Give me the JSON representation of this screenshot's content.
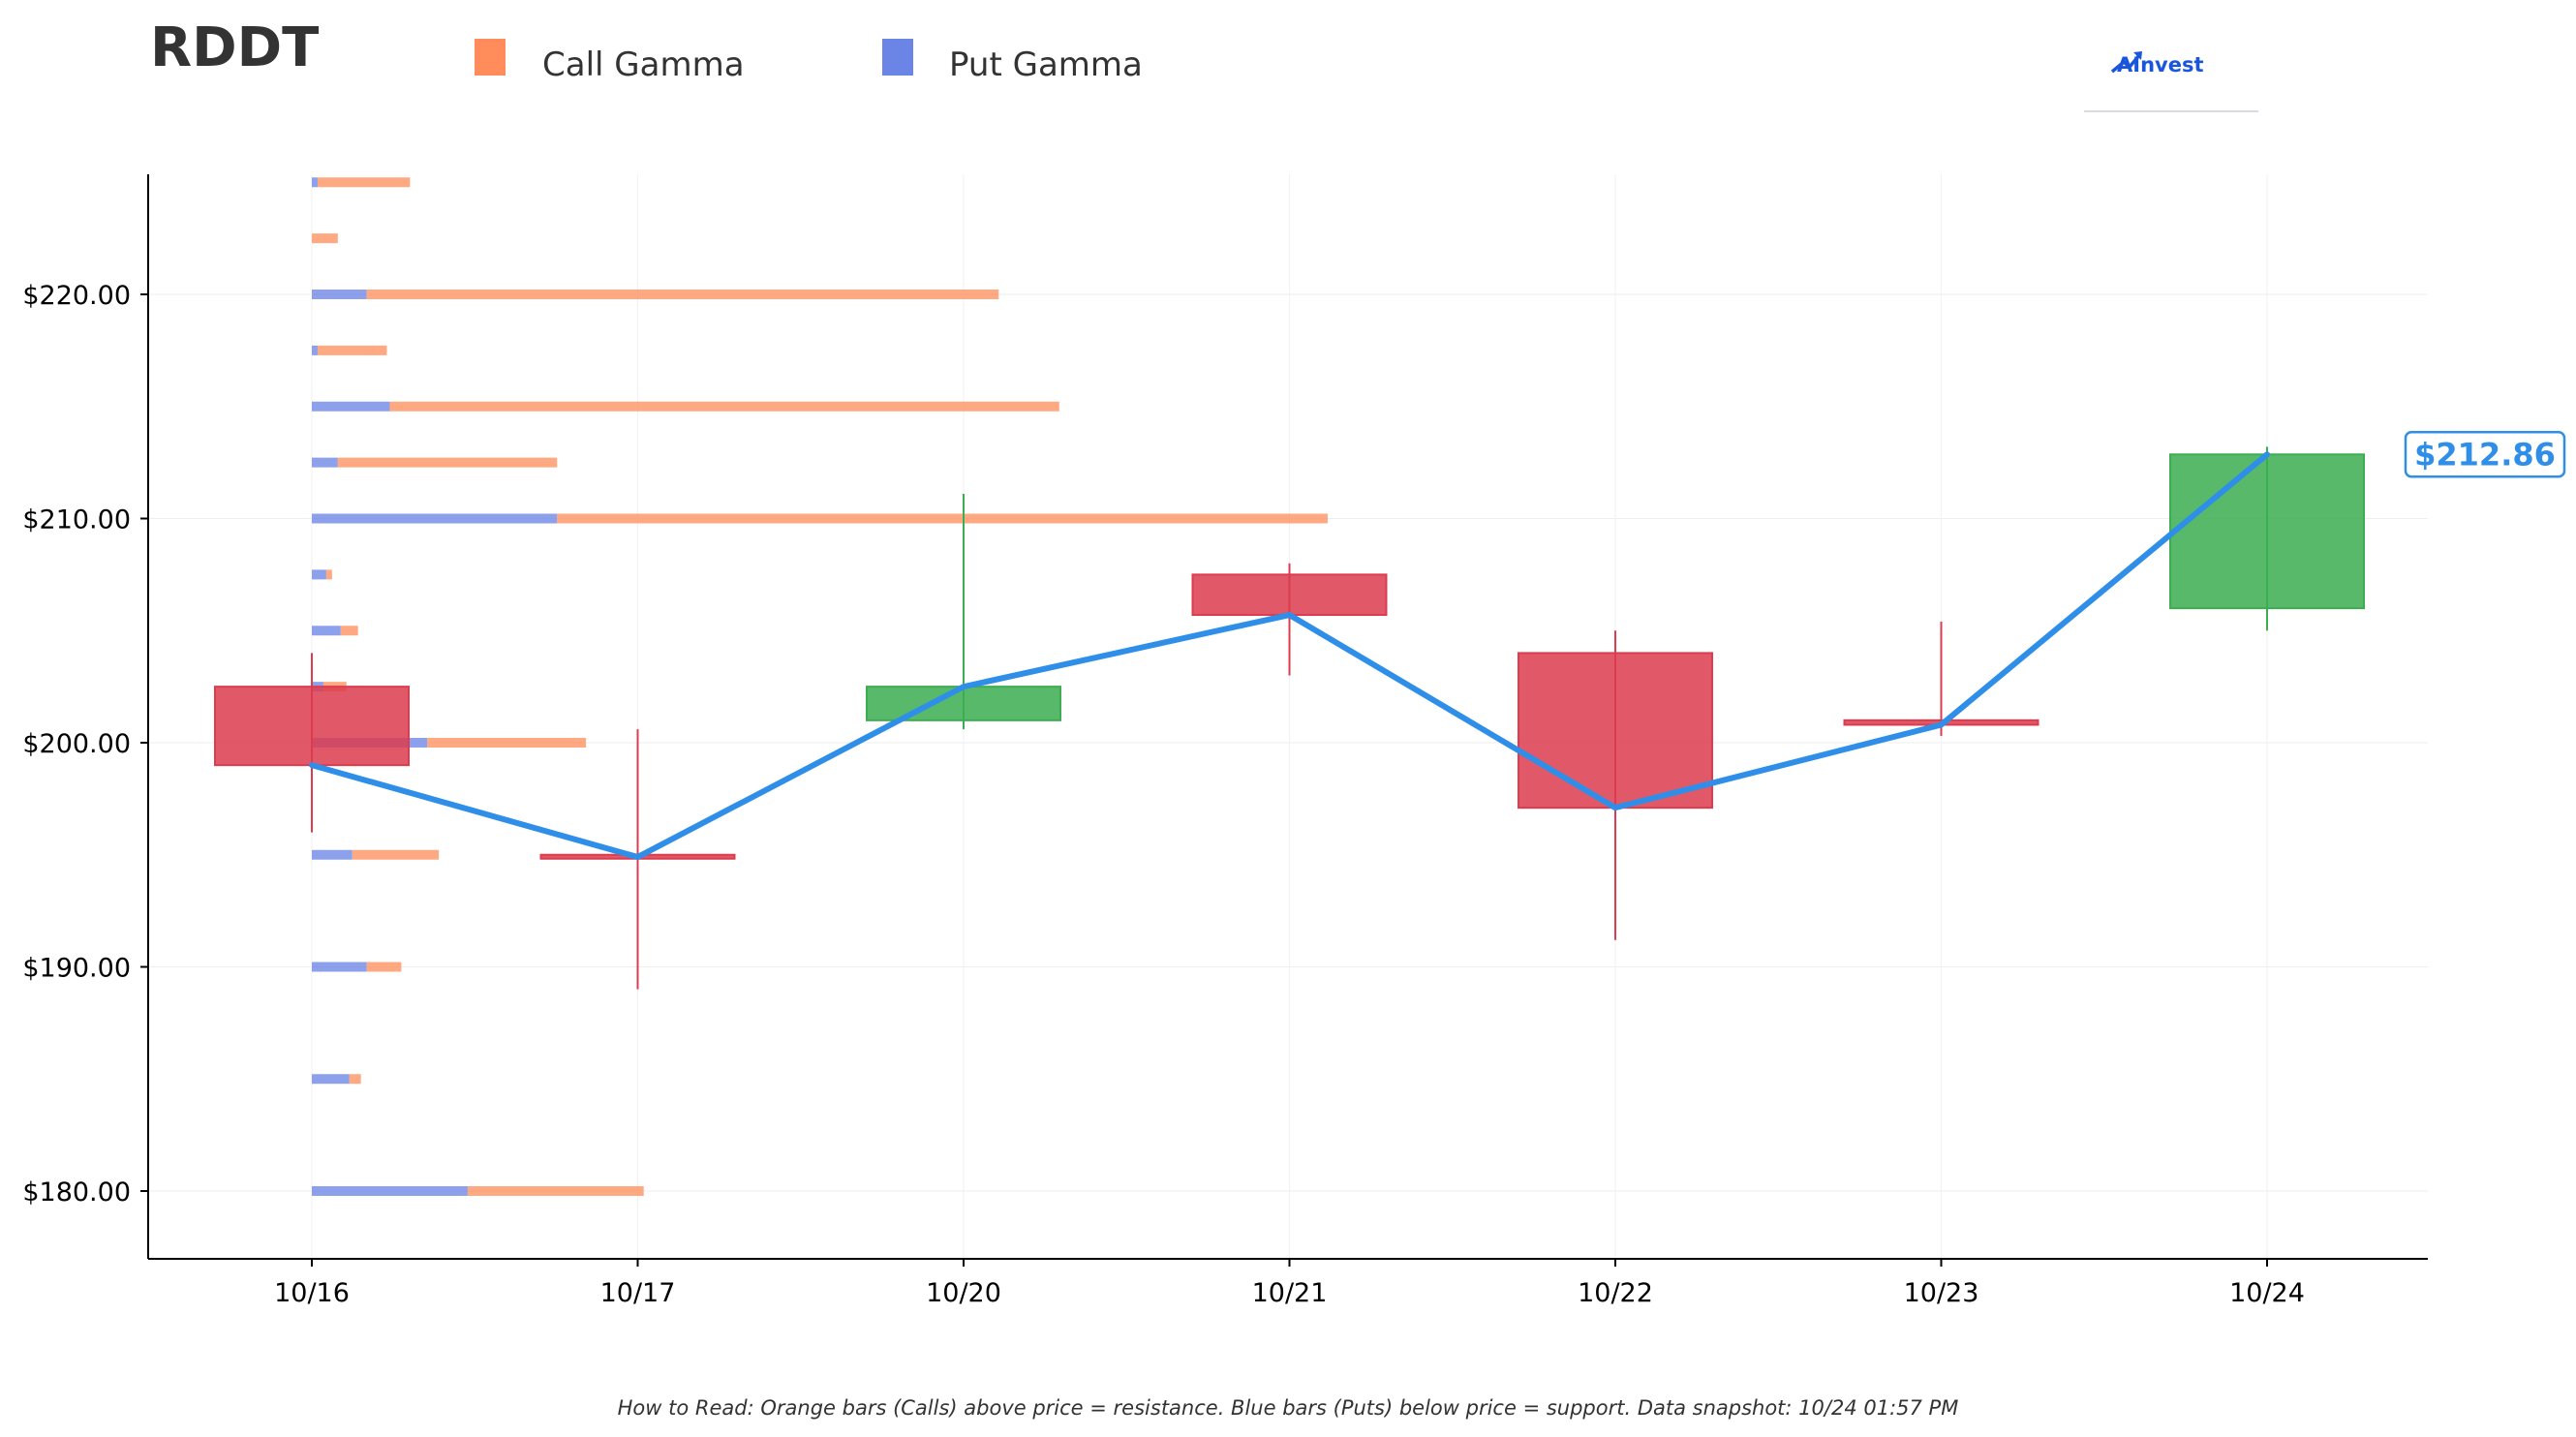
{
  "chart_data": {
    "type": "candlestick",
    "ticker": "RDDT",
    "legend": [
      {
        "name": "Call Gamma",
        "color": "#ff8c5a"
      },
      {
        "name": "Put Gamma",
        "color": "#6b85e6"
      }
    ],
    "categories": [
      "10/16",
      "10/17",
      "10/20",
      "10/21",
      "10/22",
      "10/23",
      "10/24"
    ],
    "candles": [
      {
        "date": "10/16",
        "open": 202.5,
        "high": 204.0,
        "low": 196.0,
        "close": 199.0
      },
      {
        "date": "10/17",
        "open": 195.0,
        "high": 200.6,
        "low": 189.0,
        "close": 194.9
      },
      {
        "date": "10/20",
        "open": 201.0,
        "high": 211.1,
        "low": 200.6,
        "close": 202.5
      },
      {
        "date": "10/21",
        "open": 207.5,
        "high": 208.0,
        "low": 203.0,
        "close": 205.7
      },
      {
        "date": "10/22",
        "open": 204.0,
        "high": 205.0,
        "low": 191.2,
        "close": 197.1
      },
      {
        "date": "10/23",
        "open": 201.0,
        "high": 205.4,
        "low": 200.3,
        "close": 200.8
      },
      {
        "date": "10/24",
        "open": 206.0,
        "high": 213.2,
        "low": 205.0,
        "close": 212.86
      }
    ],
    "gamma": [
      {
        "strike": 180.0,
        "put": 5.4,
        "call": 6.1
      },
      {
        "strike": 185.0,
        "put": 1.3,
        "call": 0.4
      },
      {
        "strike": 190.0,
        "put": 1.9,
        "call": 1.2
      },
      {
        "strike": 195.0,
        "put": 1.4,
        "call": 3.0
      },
      {
        "strike": 200.0,
        "put": 4.0,
        "call": 5.5
      },
      {
        "strike": 202.5,
        "put": 0.4,
        "call": 0.8
      },
      {
        "strike": 205.0,
        "put": 1.0,
        "call": 0.6
      },
      {
        "strike": 207.5,
        "put": 0.5,
        "call": 0.2
      },
      {
        "strike": 210.0,
        "put": 8.5,
        "call": 26.7
      },
      {
        "strike": 212.5,
        "put": 0.9,
        "call": 7.6
      },
      {
        "strike": 215.0,
        "put": 2.7,
        "call": 23.2
      },
      {
        "strike": 217.5,
        "put": 0.2,
        "call": 2.4
      },
      {
        "strike": 220.0,
        "put": 1.9,
        "call": 21.9
      },
      {
        "strike": 222.5,
        "put": 0.0,
        "call": 0.9
      },
      {
        "strike": 225.0,
        "put": 0.2,
        "call": 3.2
      }
    ],
    "last_price_label": "$212.86",
    "y_ticks": [
      180,
      190,
      200,
      210,
      220
    ],
    "y_tick_labels": [
      "$180.00",
      "$190.00",
      "$200.00",
      "$210.00",
      "$220.00"
    ],
    "ylim": [
      177,
      225.3
    ],
    "grid": true,
    "legend_position": "top-left",
    "colors": {
      "up": "#3cad50",
      "down": "#dc3c4e",
      "price_line": "#2f8fe8",
      "call": "#ff8c5a",
      "put": "#6b85e6"
    },
    "note": "How to Read: Orange bars (Calls) above price = resistance. Blue bars (Puts) below price = support. Data snapshot: 10/24 01:57 PM"
  },
  "brand": {
    "logo_text": "AInvest",
    "logo_icon": "chart-arrow-icon"
  }
}
